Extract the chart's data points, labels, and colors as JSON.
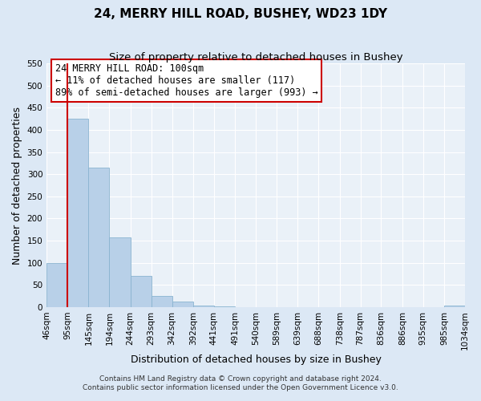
{
  "title": "24, MERRY HILL ROAD, BUSHEY, WD23 1DY",
  "subtitle": "Size of property relative to detached houses in Bushey",
  "xlabel": "Distribution of detached houses by size in Bushey",
  "ylabel": "Number of detached properties",
  "bin_edges": [
    46,
    95,
    145,
    194,
    244,
    293,
    342,
    392,
    441,
    491,
    540,
    589,
    639,
    688,
    738,
    787,
    836,
    886,
    935,
    985,
    1034
  ],
  "bin_labels": [
    "46sqm",
    "95sqm",
    "145sqm",
    "194sqm",
    "244sqm",
    "293sqm",
    "342sqm",
    "392sqm",
    "441sqm",
    "491sqm",
    "540sqm",
    "589sqm",
    "639sqm",
    "688sqm",
    "738sqm",
    "787sqm",
    "836sqm",
    "886sqm",
    "935sqm",
    "985sqm",
    "1034sqm"
  ],
  "counts": [
    100,
    425,
    315,
    157,
    71,
    26,
    13,
    3,
    1,
    0,
    0,
    0,
    0,
    0,
    0,
    0,
    0,
    0,
    0,
    3
  ],
  "bar_color": "#b8d0e8",
  "bar_edge_color": "#8ab4d0",
  "property_line_x": 95,
  "property_line_color": "#cc0000",
  "annotation_line1": "24 MERRY HILL ROAD: 100sqm",
  "annotation_line2": "← 11% of detached houses are smaller (117)",
  "annotation_line3": "89% of semi-detached houses are larger (993) →",
  "annotation_box_color": "#cc0000",
  "ylim": [
    0,
    550
  ],
  "yticks": [
    0,
    50,
    100,
    150,
    200,
    250,
    300,
    350,
    400,
    450,
    500,
    550
  ],
  "footnote1": "Contains HM Land Registry data © Crown copyright and database right 2024.",
  "footnote2": "Contains public sector information licensed under the Open Government Licence v3.0.",
  "title_fontsize": 11,
  "subtitle_fontsize": 9.5,
  "label_fontsize": 9,
  "tick_fontsize": 7.5,
  "annotation_fontsize": 8.5,
  "footnote_fontsize": 6.5,
  "bg_color": "#dce8f5",
  "plot_bg_color": "#eaf1f8"
}
